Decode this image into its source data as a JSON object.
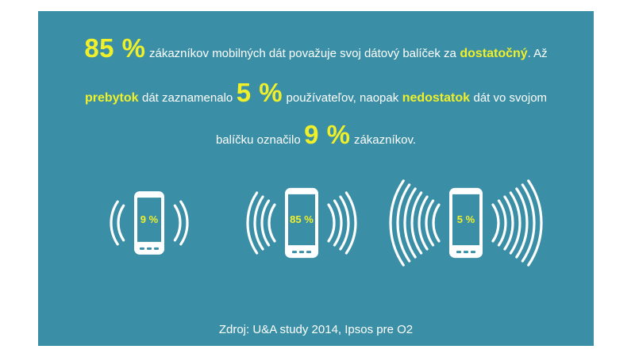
{
  "headline": {
    "line1": {
      "pct": "85 %",
      "text1": "zákazníkov mobilných dát považuje svoj dátový balíček za",
      "keyword": "dostatočný",
      "text2": ". Až"
    },
    "line2": {
      "keyword1": "prebytok",
      "text1": "dát zaznamenalo",
      "pct": "5 %",
      "text2": "používateľov, naopak",
      "keyword2": "nedostatok",
      "text3": "dát vo svojom"
    },
    "line3": {
      "text1": "balíčku označilo",
      "pct": "9 %",
      "text2": "zákazníkov."
    }
  },
  "phones": [
    {
      "label": "9 %",
      "waves": 2
    },
    {
      "label": "85 %",
      "waves": 4
    },
    {
      "label": "5 %",
      "waves": 7
    }
  ],
  "source": "Zdroj: U&A study 2014, Ipsos pre O2",
  "colors": {
    "background": "#3a8fa6",
    "highlight": "#f0f02a",
    "text": "#ffffff"
  }
}
